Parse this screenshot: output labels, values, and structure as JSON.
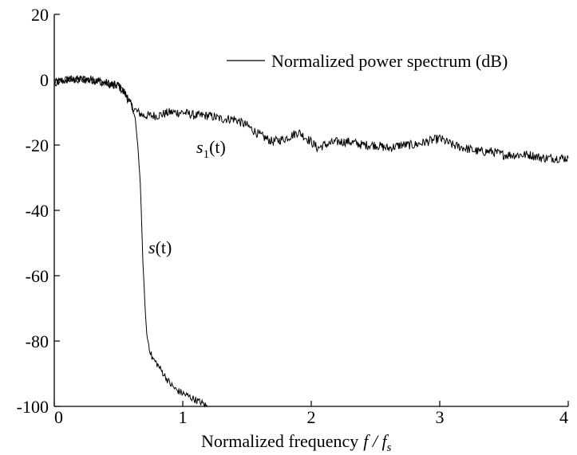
{
  "chart_data": {
    "type": "line",
    "title": "",
    "xlabel": "Normalized frequency f/f_s",
    "xlabel_display": "Normalized frequency",
    "xlabel_math": "f / f",
    "xlabel_sub": "s",
    "ylabel": "",
    "xlim": [
      0,
      4
    ],
    "ylim": [
      -100,
      20
    ],
    "xticks": [
      0,
      1,
      2,
      3,
      4
    ],
    "xtick_labels": [
      "0",
      "1",
      "2",
      "3",
      "4"
    ],
    "yticks": [
      20,
      0,
      -20,
      -40,
      -60,
      -80,
      -100
    ],
    "ytick_labels": [
      "20",
      "0",
      "-20",
      "-40",
      "-60",
      "-80",
      "-100"
    ],
    "grid": false,
    "legend": {
      "position": "top-right",
      "entries": [
        "Normalized power spectrum (dB)"
      ]
    },
    "series": [
      {
        "label_main": "s",
        "label_sub": "1",
        "label_arg": "(t)",
        "color": "#000000",
        "x": [
          0,
          0.1,
          0.2,
          0.3,
          0.4,
          0.5,
          0.55,
          0.6,
          0.65,
          0.7,
          0.8,
          0.9,
          1.0,
          1.1,
          1.2,
          1.3,
          1.4,
          1.5,
          1.6,
          1.7,
          1.8,
          1.85,
          1.9,
          2.0,
          2.05,
          2.1,
          2.2,
          2.3,
          2.4,
          2.5,
          2.6,
          2.7,
          2.8,
          2.9,
          3.0,
          3.1,
          3.2,
          3.3,
          3.4,
          3.5,
          3.6,
          3.7,
          3.8,
          3.9,
          4.0
        ],
        "values": [
          -1,
          0,
          0,
          0,
          -1,
          -2,
          -4,
          -8,
          -10,
          -11,
          -11,
          -10,
          -10,
          -11,
          -11,
          -12,
          -12,
          -14,
          -17,
          -19,
          -18,
          -17,
          -16,
          -19,
          -21,
          -20,
          -19,
          -19,
          -20,
          -20,
          -21,
          -20,
          -20,
          -19,
          -18,
          -20,
          -21,
          -22,
          -22,
          -23,
          -23,
          -23,
          -24,
          -24,
          -24
        ]
      },
      {
        "label_main": "s",
        "label_sub": "",
        "label_arg": "(t)",
        "color": "#000000",
        "x": [
          0,
          0.1,
          0.2,
          0.3,
          0.4,
          0.5,
          0.55,
          0.6,
          0.63,
          0.65,
          0.67,
          0.68,
          0.69,
          0.7,
          0.71,
          0.72,
          0.74,
          0.76,
          0.8,
          0.85,
          0.9,
          0.95,
          1.0,
          1.05,
          1.1,
          1.15,
          1.19
        ],
        "values": [
          -1,
          0,
          0,
          0,
          -1,
          -2,
          -4,
          -8,
          -12,
          -20,
          -32,
          -44,
          -56,
          -64,
          -72,
          -78,
          -82,
          -85,
          -87,
          -90,
          -93,
          -95,
          -96,
          -97,
          -98,
          -99,
          -100
        ]
      }
    ]
  }
}
